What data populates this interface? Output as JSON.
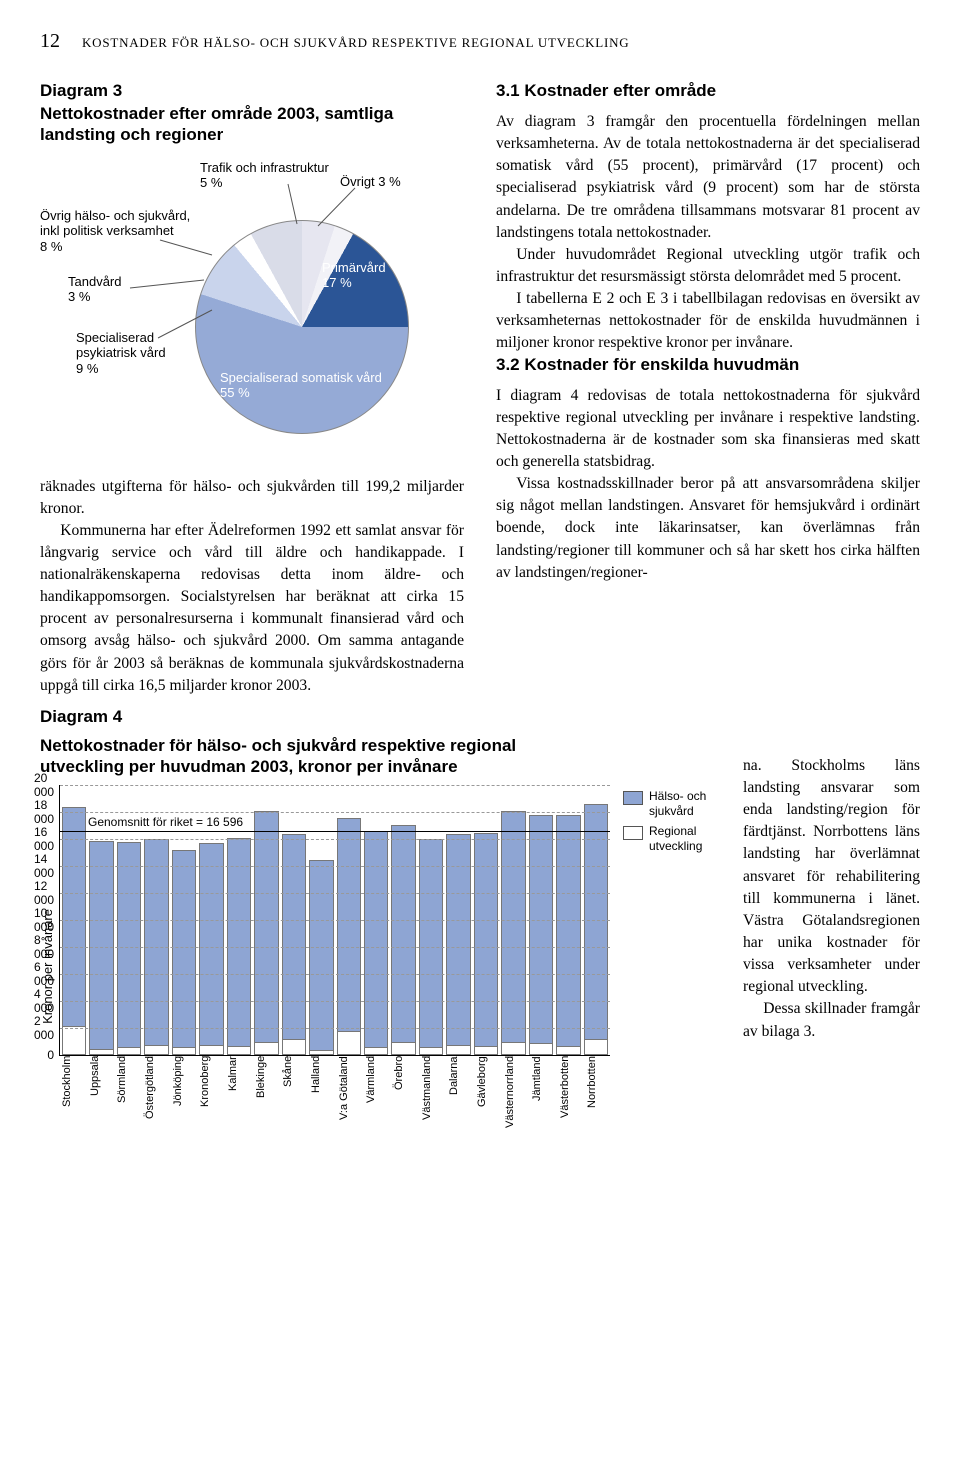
{
  "page": {
    "number": "12",
    "running_head": "KOSTNADER FÖR HÄLSO- OCH SJUKVÅRD RESPEKTIVE REGIONAL UTVECKLING"
  },
  "diagram3": {
    "title_line1": "Diagram 3",
    "title_line2": "Nettokostnader efter område 2003, samtliga landsting och regioner",
    "type": "pie",
    "slices": [
      {
        "label": "Trafik och infrastruktur",
        "value": 5,
        "color": "#e6e6f0"
      },
      {
        "label": "Övrigt",
        "value": 3,
        "color": "#f2f2f7"
      },
      {
        "label": "Primärvård",
        "value": 17,
        "color": "#2b5596"
      },
      {
        "label": "Specialiserad somatisk vård",
        "value": 55,
        "color": "#95aad6"
      },
      {
        "label": "Specialiserad psykiatrisk vård",
        "value": 9,
        "color": "#c9d4ec"
      },
      {
        "label": "Tandvård",
        "value": 3,
        "color": "#ffffff"
      },
      {
        "label": "Övrig hälso- och sjukvård, inkl politisk verksamhet",
        "value": 8,
        "color": "#d9dce8"
      }
    ],
    "callouts": {
      "trafik": "Trafik och infrastruktur\n5 %",
      "ovrigt": "Övrigt 3 %",
      "primar": "Primärvård\n17 %",
      "somatisk": "Specialiserad somatisk vård\n55 %",
      "psyk": "Specialiserad\npsykiatrisk vård\n9 %",
      "tand": "Tandvård\n3 %",
      "ovrighs": "Övrig hälso- och sjukvård,\ninkl politisk verksamhet\n8 %"
    }
  },
  "left_para1": "räknades utgifterna för hälso- och sjukvården till 199,2 miljarder kronor.",
  "left_para2": "Kommunerna har efter Ädelreformen 1992 ett samlat ansvar för långvarig service och vård till äldre och handikappade. I nationalräkenskaperna redovisas detta inom äldre- och handikappomsorgen. Socialstyrelsen har beräknat att cirka 15 procent av personalresurserna i kommunalt finansierad vård och omsorg avsåg hälso- och sjukvård 2000. Om samma antagande görs för år 2003 så beräknas de kommunala sjukvårdskostnaderna uppgå till cirka 16,5 miljarder kronor 2003.",
  "sec31": {
    "heading": "3.1  Kostnader efter område",
    "p1": "Av diagram 3 framgår den procentuella fördelningen mellan verksamheterna. Av de totala nettokostnaderna är det specialiserad somatisk vård (55 procent), primärvård (17 procent) och specialiserad psykiatrisk vård (9 procent) som har de största andelarna. De tre områdena tillsammans motsvarar 81 procent av landstingens totala nettokostnader.",
    "p2": "Under huvudområdet Regional utveckling utgör trafik och infrastruktur det resursmässigt största delområdet med 5 procent.",
    "p3": "I tabellerna E 2 och E 3 i tabellbilagan redovisas en översikt av verksamheternas nettokostnader för de enskilda huvudmännen i miljoner kronor respektive kronor per invånare."
  },
  "sec32": {
    "heading": "3.2  Kostnader för enskilda huvudmän",
    "p1": "I diagram 4 redovisas de totala nettokostnaderna för sjukvård respektive regional utveckling per invånare i respektive landsting. Nettokostnaderna är de kostnader som ska finansieras med skatt och generella statsbidrag.",
    "p2": "Vissa kostnadsskillnader beror på att ansvarsområdena skiljer sig något mellan landstingen. Ansvaret för hemsjukvård i ordinärt boende, dock inte läkarinsatser, kan överlämnas från landsting/regioner till kommuner och så har skett hos cirka hälften av landstingen/regioner-",
    "p2tail": "na. Stockholms läns landsting ansvarar som enda landsting/region för färdtjänst. Norrbottens läns landsting har överlämnat ansvaret för rehabilitering till kommunerna i länet. Västra Götalandsregionen har unika kostnader för vissa verksamheter under regional utveckling.",
    "p3": "Dessa skillnader framgår av bilaga 3."
  },
  "diagram4": {
    "title_line1": "Diagram 4",
    "title_line2": "Nettokostnader för hälso- och sjukvård respektive regional utveckling per huvudman 2003, kronor per invånare",
    "type": "stacked-bar",
    "ylabel": "Kronor per invånare",
    "ylim": [
      0,
      20000
    ],
    "ytick_step": 2000,
    "average_label": "Genomsnitt för riket = 16 596",
    "average_value": 16596,
    "legend": [
      {
        "label": "Hälso- och sjukvård",
        "color": "#8ea5d3"
      },
      {
        "label": "Regional utveckling",
        "color": "#ffffff"
      }
    ],
    "categories": [
      "Stockholm",
      "Uppsala",
      "Sörmland",
      "Östergötland",
      "Jönköping",
      "Kronoberg",
      "Kalmar",
      "Blekinge",
      "Skåne",
      "Halland",
      "V:a Götaland",
      "Värmland",
      "Örebro",
      "Västmanland",
      "Dalarna",
      "Gävleborg",
      "Västernorrland",
      "Jämtland",
      "Västerbotten",
      "Norrbotten"
    ],
    "series_halso": [
      16200,
      15400,
      15200,
      15200,
      14600,
      14900,
      15400,
      17100,
      15200,
      14100,
      15800,
      16000,
      16100,
      15400,
      15600,
      15800,
      17100,
      16900,
      17100,
      17400
    ],
    "series_regional": [
      2200,
      500,
      600,
      800,
      600,
      800,
      700,
      1000,
      1200,
      400,
      1800,
      600,
      1000,
      600,
      800,
      700,
      1000,
      900,
      700,
      1200
    ],
    "bar_colors": {
      "top": "#8ea5d3",
      "bottom": "#ffffff",
      "border": "#777"
    },
    "grid_color": "#999",
    "background_color": "#ffffff"
  }
}
